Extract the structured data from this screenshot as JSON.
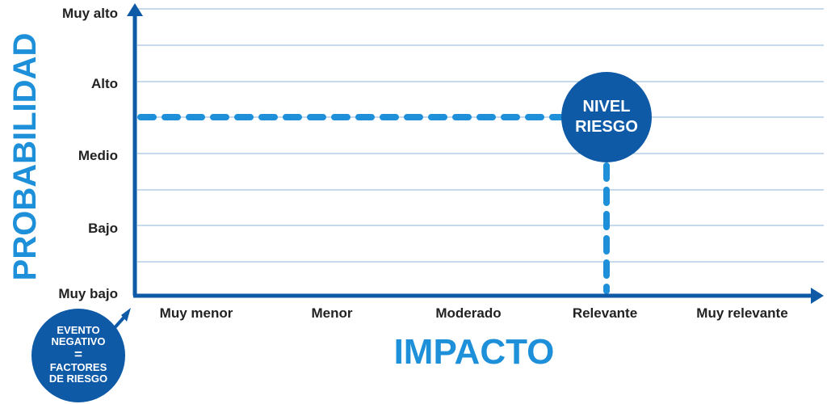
{
  "colors": {
    "axis": "#0e5aa7",
    "accent": "#1e90d9",
    "circle": "#0e5aa7",
    "grid": "#8fb3d9",
    "text": "#222222",
    "white": "#ffffff"
  },
  "axes": {
    "y_title": "PROBABILIDAD",
    "x_title": "IMPACTO",
    "y_levels": [
      "Muy bajo",
      "Bajo",
      "Medio",
      "Alto",
      "Muy alto"
    ],
    "x_levels": [
      "Muy menor",
      "Menor",
      "Moderado",
      "Relevante",
      "Muy relevante"
    ]
  },
  "risk_point": {
    "label_line1": "NIVEL",
    "label_line2": "RIESGO",
    "probability_level": 2.5,
    "impact_level": "Relevante"
  },
  "origin_badge": {
    "line1": "EVENTO",
    "line2": "NEGATIVO",
    "line3": "=",
    "line4": "FACTORES",
    "line5": "DE RIESGO"
  }
}
